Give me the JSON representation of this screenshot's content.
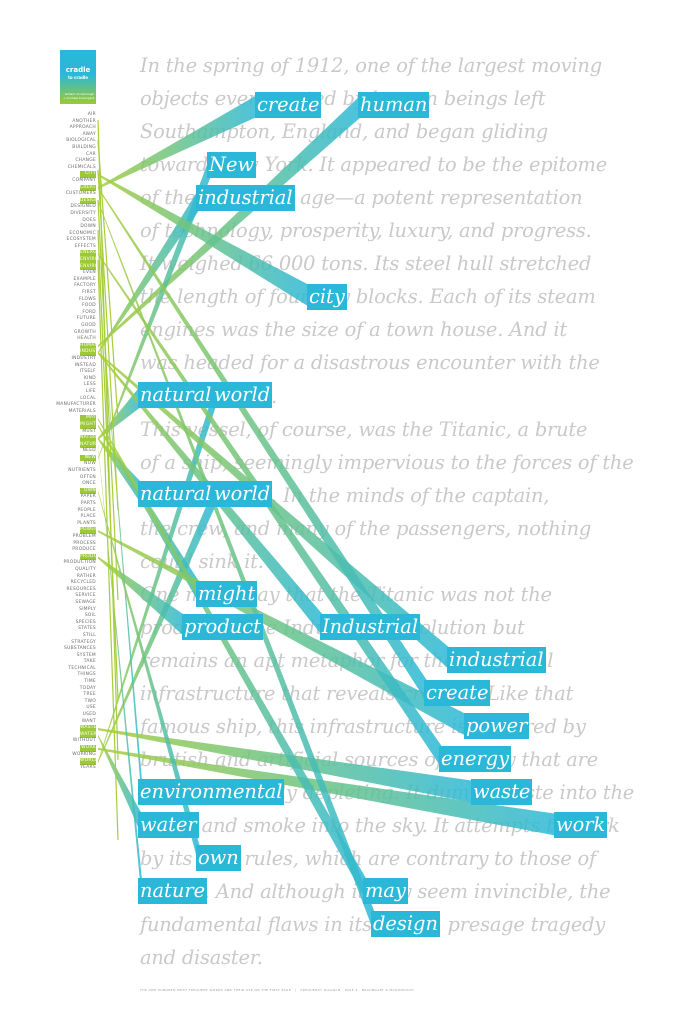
{
  "logo": {
    "title_line1": "cradle",
    "title_line2": "to cradle",
    "subtitle": "william mcdonough + michael braungart"
  },
  "word_list": [
    {
      "t": "AIR",
      "hl": false
    },
    {
      "t": "ANOTHER",
      "hl": false
    },
    {
      "t": "APPROACH",
      "hl": false
    },
    {
      "t": "AWAY",
      "hl": false
    },
    {
      "t": "BIOLOGICAL",
      "hl": false
    },
    {
      "t": "BUILDING",
      "hl": false
    },
    {
      "t": "CAR",
      "hl": false
    },
    {
      "t": "CHANGE",
      "hl": false
    },
    {
      "t": "CHEMICALS",
      "hl": false
    },
    {
      "t": "CITY",
      "hl": true
    },
    {
      "t": "COMPANY",
      "hl": false
    },
    {
      "t": "CREATE",
      "hl": true
    },
    {
      "t": "CUSTOMERS",
      "hl": false
    },
    {
      "t": "DESIGN",
      "hl": true
    },
    {
      "t": "DESIGNED",
      "hl": false
    },
    {
      "t": "DIVERSITY",
      "hl": false
    },
    {
      "t": "DOES",
      "hl": false
    },
    {
      "t": "DOWN",
      "hl": false
    },
    {
      "t": "ECONOMIC",
      "hl": false
    },
    {
      "t": "ECOSYSTEM",
      "hl": false
    },
    {
      "t": "EFFECTS",
      "hl": false
    },
    {
      "t": "ENERGY",
      "hl": true
    },
    {
      "t": "ENVIRONMENT",
      "hl": true
    },
    {
      "t": "ENVIRONMENTAL",
      "hl": true
    },
    {
      "t": "EVEN",
      "hl": false
    },
    {
      "t": "EXAMPLE",
      "hl": false
    },
    {
      "t": "FACTORY",
      "hl": false
    },
    {
      "t": "FIRST",
      "hl": false
    },
    {
      "t": "FLOWS",
      "hl": false
    },
    {
      "t": "FOOD",
      "hl": false
    },
    {
      "t": "FORD",
      "hl": false
    },
    {
      "t": "FUTURE",
      "hl": false
    },
    {
      "t": "GOOD",
      "hl": false
    },
    {
      "t": "GROWTH",
      "hl": false
    },
    {
      "t": "HEALTH",
      "hl": false
    },
    {
      "t": "HUMAN",
      "hl": true
    },
    {
      "t": "INDUSTRIAL",
      "hl": true
    },
    {
      "t": "INDUSTRY",
      "hl": false
    },
    {
      "t": "INSTEAD",
      "hl": false
    },
    {
      "t": "ITSELF",
      "hl": false
    },
    {
      "t": "KIND",
      "hl": false
    },
    {
      "t": "LESS",
      "hl": false
    },
    {
      "t": "LIFE",
      "hl": false
    },
    {
      "t": "LOCAL",
      "hl": false
    },
    {
      "t": "MANUFACTURER",
      "hl": false
    },
    {
      "t": "MATERIALS",
      "hl": false
    },
    {
      "t": "MAY",
      "hl": true
    },
    {
      "t": "MIGHT",
      "hl": true
    },
    {
      "t": "MUST",
      "hl": false
    },
    {
      "t": "NATURAL",
      "hl": true
    },
    {
      "t": "NATURE",
      "hl": true
    },
    {
      "t": "NEED",
      "hl": false
    },
    {
      "t": "NEW",
      "hl": true
    },
    {
      "t": "NOW",
      "hl": false
    },
    {
      "t": "NUTRIENTS",
      "hl": false
    },
    {
      "t": "OFTEN",
      "hl": false
    },
    {
      "t": "ONCE",
      "hl": false
    },
    {
      "t": "OWN",
      "hl": true
    },
    {
      "t": "PAPER",
      "hl": false
    },
    {
      "t": "PARTS",
      "hl": false
    },
    {
      "t": "PEOPLE",
      "hl": false
    },
    {
      "t": "PLACE",
      "hl": false
    },
    {
      "t": "PLANTS",
      "hl": false
    },
    {
      "t": "POWER",
      "hl": true
    },
    {
      "t": "PROBLEM",
      "hl": false
    },
    {
      "t": "PROCESS",
      "hl": false
    },
    {
      "t": "PRODUCE",
      "hl": false
    },
    {
      "t": "PRODUCT",
      "hl": true
    },
    {
      "t": "PRODUCTION",
      "hl": false
    },
    {
      "t": "QUALITY",
      "hl": false
    },
    {
      "t": "RATHER",
      "hl": false
    },
    {
      "t": "RECYCLED",
      "hl": false
    },
    {
      "t": "RESOURCES",
      "hl": false
    },
    {
      "t": "SERVICE",
      "hl": false
    },
    {
      "t": "SEWAGE",
      "hl": false
    },
    {
      "t": "SIMPLY",
      "hl": false
    },
    {
      "t": "SOIL",
      "hl": false
    },
    {
      "t": "SPECIES",
      "hl": false
    },
    {
      "t": "STATES",
      "hl": false
    },
    {
      "t": "STILL",
      "hl": false
    },
    {
      "t": "STRATEGY",
      "hl": false
    },
    {
      "t": "SUBSTANCES",
      "hl": false
    },
    {
      "t": "SYSTEM",
      "hl": false
    },
    {
      "t": "TAKE",
      "hl": false
    },
    {
      "t": "TECHNICAL",
      "hl": false
    },
    {
      "t": "THINGS",
      "hl": false
    },
    {
      "t": "TIME",
      "hl": false
    },
    {
      "t": "TODAY",
      "hl": false
    },
    {
      "t": "TREE",
      "hl": false
    },
    {
      "t": "TWO",
      "hl": false
    },
    {
      "t": "USE",
      "hl": false
    },
    {
      "t": "USED",
      "hl": false
    },
    {
      "t": "WANT",
      "hl": false
    },
    {
      "t": "WASTE",
      "hl": true
    },
    {
      "t": "WATER",
      "hl": true
    },
    {
      "t": "WITHOUT",
      "hl": false
    },
    {
      "t": "WORK",
      "hl": true
    },
    {
      "t": "WORKING",
      "hl": false
    },
    {
      "t": "WORLD",
      "hl": true
    },
    {
      "t": "YEARS",
      "hl": false
    }
  ],
  "text_lines": [
    "In the spring of 1912, one of the largest moving",
    "objects ever created by human beings left",
    "Southampton, England, and began gliding",
    "toward New York. It appeared to be the epitome",
    "of the industrial age—a potent representation",
    "of technology, prosperity, luxury, and progress.",
    "It weighed 66,000 tons. Its steel hull stretched",
    "the length of four city blocks. Each of its steam",
    "engines was the size of a town house. And it",
    "was headed for a disastrous encounter with the",
    "natural world.",
    "    This vessel, of course, was the Titanic, a brute",
    "of a ship, seemingly impervious to the forces of the",
    "natural world. In the minds of the captain,",
    "the crew, and many of the passengers, nothing",
    "could sink it.",
    "    One might say that the Titanic was not the",
    "product of the Industrial Revolution but",
    "remains an apt metaphor for the industrial",
    "infrastructure that reveals created. Like that",
    "famous ship, this infrastructure is powered by",
    "brutish and artificial sources of energy that are",
    "environmentally depleting. It dumps waste into the",
    "water and smoke into the sky. It attempts to work",
    "by its own rules, which are contrary to those of",
    "nature. And although it may seem invincible, the",
    "fundamental flaws in its design presage tragedy",
    "and disaster."
  ],
  "highlights": [
    {
      "word": "create",
      "line": 1
    },
    {
      "word": "human",
      "line": 1
    },
    {
      "word": "New",
      "line": 3
    },
    {
      "word": "industrial",
      "line": 4
    },
    {
      "word": "city",
      "line": 7
    },
    {
      "word": "natural",
      "line": 10
    },
    {
      "word": "world",
      "line": 10
    },
    {
      "word": "natural",
      "line": 13
    },
    {
      "word": "world",
      "line": 13
    },
    {
      "word": "might",
      "line": 16
    },
    {
      "word": "product",
      "line": 17
    },
    {
      "word": "Industrial",
      "line": 17
    },
    {
      "word": "industrial",
      "line": 18
    },
    {
      "word": "create",
      "line": 19
    },
    {
      "word": "power",
      "line": 20
    },
    {
      "word": "energy",
      "line": 21
    },
    {
      "word": "environmental",
      "line": 22
    },
    {
      "word": "waste",
      "line": 22
    },
    {
      "word": "water",
      "line": 23
    },
    {
      "word": "work",
      "line": 23
    },
    {
      "word": "own",
      "line": 24
    },
    {
      "word": "nature",
      "line": 25
    },
    {
      "word": "may",
      "line": 25
    },
    {
      "word": "design",
      "line": 26
    }
  ],
  "footer": {
    "left": "THE ONE HUNDRED MOST FREQUENT WORDS AND THEIR USE ON THE FIRST PAGE",
    "right": "FREQUENCY DIAGRAM · PAGE 3 · BRAUNGART & MCDONOUGH"
  },
  "colors": {
    "accent_blue": "#2bb8d8",
    "accent_green": "#9cc935",
    "body_text": "#c9c9c9"
  }
}
